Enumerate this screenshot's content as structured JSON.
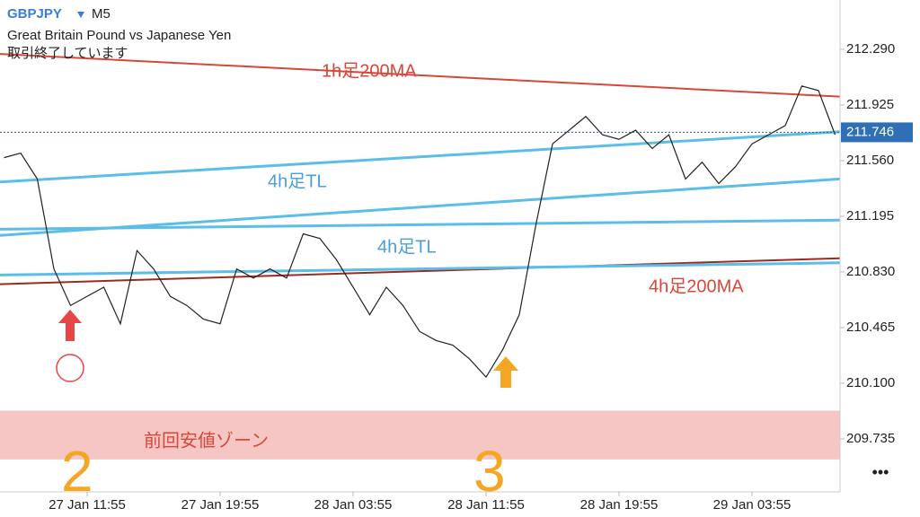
{
  "header": {
    "symbol": "GBPJPY",
    "timeframe": "M5",
    "description": "Great Britain Pound vs Japanese Yen",
    "status": "取引終了しています"
  },
  "chart_data": {
    "type": "line",
    "categories": [
      "",
      "",
      "",
      "",
      "",
      "27 Jan 11:55",
      "",
      "",
      "",
      "",
      "",
      "",
      "",
      "27 Jan 19:55",
      "",
      "",
      "",
      "",
      "",
      "",
      "",
      "28 Jan 03:55",
      "",
      "",
      "",
      "",
      "",
      "",
      "",
      "28 Jan 11:55",
      "",
      "",
      "",
      "",
      "",
      "",
      "",
      "28 Jan 19:55",
      "",
      "",
      "",
      "",
      "",
      "",
      "",
      "29 Jan 03:55",
      "",
      "",
      "",
      "",
      ""
    ],
    "series": [
      {
        "color": "#222222",
        "values": [
          211.58,
          211.61,
          211.44,
          210.85,
          210.61,
          210.67,
          210.73,
          210.49,
          210.97,
          210.85,
          210.67,
          210.61,
          210.52,
          210.49,
          210.85,
          210.79,
          210.85,
          210.79,
          211.08,
          211.05,
          210.91,
          210.73,
          210.55,
          210.73,
          210.61,
          210.44,
          210.38,
          210.35,
          210.26,
          210.14,
          210.32,
          210.55,
          211.14,
          211.67,
          211.76,
          211.85,
          211.73,
          211.7,
          211.76,
          211.64,
          211.73,
          211.44,
          211.55,
          211.41,
          211.52,
          211.67,
          211.73,
          211.79,
          212.05,
          212.02,
          211.73
        ]
      }
    ],
    "ylim": [
      209.405,
      212.614
    ],
    "yticks": [
      {
        "value": 212.29,
        "label": "212.290"
      },
      211.925,
      {
        "value": 211.56,
        "label": "211.560"
      },
      211.195,
      {
        "value": 210.83,
        "label": "210.830"
      },
      210.465,
      {
        "value": 210.1,
        "label": "210.100"
      },
      209.735
    ],
    "last_price": 211.746,
    "lines": [
      {
        "color": "#d9473a",
        "values": [
          212.26,
          211.98
        ]
      },
      {
        "color": "#9c2a1e",
        "values": [
          210.75,
          210.92
        ]
      },
      {
        "color": "#5bbde8",
        "values": [
          211.42,
          211.75
        ]
      },
      {
        "color": "#5bbde8",
        "values": [
          211.07,
          211.44
        ]
      },
      {
        "color": "#5bbde8",
        "values": [
          211.11,
          211.17
        ]
      },
      {
        "color": "#5bbde8",
        "values": [
          210.81,
          210.89
        ]
      }
    ],
    "zone": {
      "color": "#f5c6c3",
      "values": [
        209.92,
        209.6
      ]
    },
    "annotations": [
      "1h足200MA",
      "4h足TL",
      "4h足TL",
      "4h足200MA",
      "前回安値ゾーン",
      "2",
      "3"
    ]
  },
  "menu": "•••"
}
